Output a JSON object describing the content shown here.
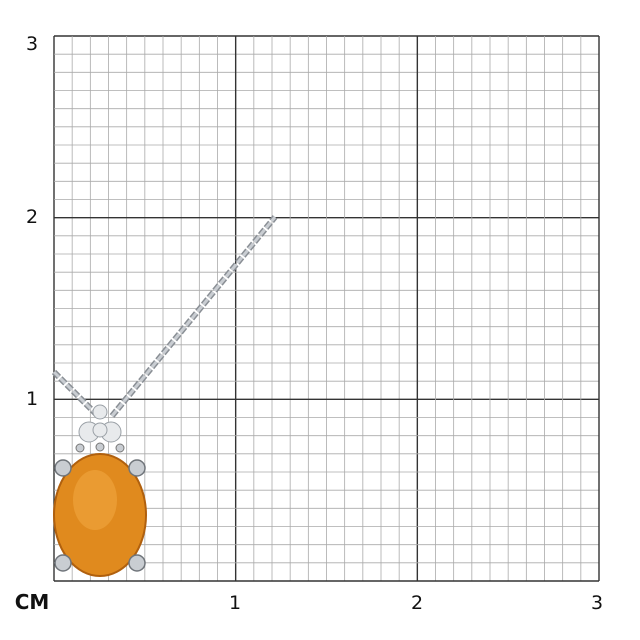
{
  "scale": {
    "unit": "CM",
    "x_labels": [
      "1",
      "2",
      "3"
    ],
    "y_labels": [
      "1",
      "2",
      "3"
    ],
    "major_divisions": 3,
    "minor_per_major": 10
  },
  "product": {
    "gem_color": "#e08a1e",
    "metal_color": "#c9cdd2"
  }
}
